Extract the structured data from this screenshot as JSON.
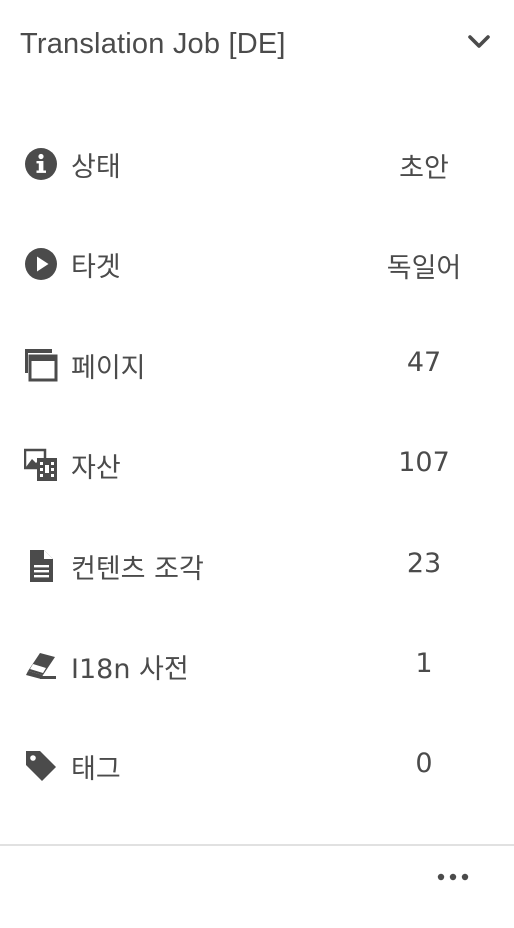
{
  "header": {
    "title": "Translation Job [DE]",
    "toggle_icon": "chevron-down-icon"
  },
  "rows": [
    {
      "icon": "info-icon",
      "label": "상태",
      "value": "초안"
    },
    {
      "icon": "play-circle-icon",
      "label": "타겟",
      "value": "독일어"
    },
    {
      "icon": "window-icon",
      "label": "페이지",
      "value": "47"
    },
    {
      "icon": "assets-icon",
      "label": "자산",
      "value": "107"
    },
    {
      "icon": "document-icon",
      "label": "컨텐츠 조각",
      "value": "23"
    },
    {
      "icon": "eraser-icon",
      "label": "I18n 사전",
      "value": "1"
    },
    {
      "icon": "tag-icon",
      "label": "태그",
      "value": "0"
    }
  ],
  "footer": {
    "more_icon": "more-icon"
  },
  "colors": {
    "text": "#4b4b4b",
    "divider": "#e1e1e1",
    "background": "#ffffff"
  }
}
